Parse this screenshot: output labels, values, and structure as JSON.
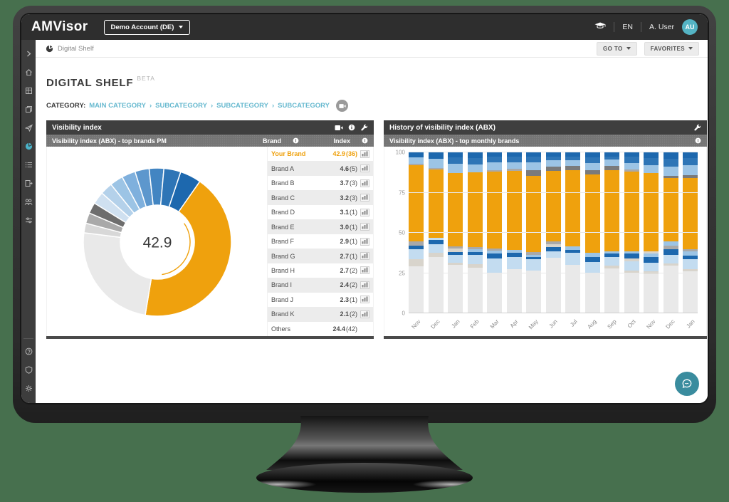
{
  "colors": {
    "background_green": "#47704e",
    "accent_orange": "#efa10d",
    "accent_teal": "#54b4c4",
    "link_teal": "#67b9cf",
    "chat_teal": "#3a8c9e"
  },
  "topbar": {
    "logo": "AMVisor",
    "account_selector": "Demo Account (DE)",
    "language": "EN",
    "user_name": "A. User",
    "user_initials": "AU",
    "icons": [
      "academy-cap-icon"
    ]
  },
  "navbar": {
    "breadcrumb": "Digital Shelf",
    "goto_label": "GO TO",
    "favorites_label": "FAVORITES"
  },
  "sidebar": {
    "top_icons": [
      "collapse-chevron",
      "home",
      "modules-grid",
      "pages-copy",
      "launch-send",
      "digital-shelf-pie",
      "list",
      "report-export",
      "users",
      "filter-sliders"
    ],
    "active_icon": "digital-shelf-pie",
    "bottom_icons": [
      "help",
      "shield",
      "settings-gear"
    ]
  },
  "page": {
    "title": "DIGITAL SHELF",
    "badge": "BETA",
    "category_label": "CATEGORY:",
    "category_separator": "›",
    "category_path": [
      "MAIN CATEGORY",
      "SUBCATEGORY",
      "SUBCATEGORY",
      "SUBCATEGORY"
    ]
  },
  "left_panel": {
    "title": "Visibility index",
    "subtitle": "Visibility index (ABX) - top brands PM",
    "columns": {
      "brand": "Brand",
      "index": "Index"
    },
    "rows": [
      {
        "brand": "Your Brand",
        "index": "42.9",
        "count": "(36)",
        "highlight": true,
        "chart_icon": true
      },
      {
        "brand": "Brand A",
        "index": "4.6",
        "count": "(5)",
        "highlight": false,
        "chart_icon": true
      },
      {
        "brand": "Brand B",
        "index": "3.7",
        "count": "(3)",
        "highlight": false,
        "chart_icon": true
      },
      {
        "brand": "Brand C",
        "index": "3.2",
        "count": "(3)",
        "highlight": false,
        "chart_icon": true
      },
      {
        "brand": "Brand D",
        "index": "3.1",
        "count": "(1)",
        "highlight": false,
        "chart_icon": true
      },
      {
        "brand": "Brand E",
        "index": "3.0",
        "count": "(1)",
        "highlight": false,
        "chart_icon": true
      },
      {
        "brand": "Brand F",
        "index": "2.9",
        "count": "(1)",
        "highlight": false,
        "chart_icon": true
      },
      {
        "brand": "Brand G",
        "index": "2.7",
        "count": "(1)",
        "highlight": false,
        "chart_icon": true
      },
      {
        "brand": "Brand H",
        "index": "2.7",
        "count": "(2)",
        "highlight": false,
        "chart_icon": true
      },
      {
        "brand": "Brand I",
        "index": "2.4",
        "count": "(2)",
        "highlight": false,
        "chart_icon": true
      },
      {
        "brand": "Brand J",
        "index": "2.3",
        "count": "(1)",
        "highlight": false,
        "chart_icon": true
      },
      {
        "brand": "Brand K",
        "index": "2.1",
        "count": "(2)",
        "highlight": false,
        "chart_icon": true
      },
      {
        "brand": "Others",
        "index": "24.4",
        "count": "(42)",
        "highlight": false,
        "chart_icon": false
      }
    ]
  },
  "right_panel": {
    "title": "History of visibility index (ABX)",
    "subtitle": "Visibility index (ABX) - top monthly brands"
  },
  "chart_data": [
    {
      "type": "pie",
      "variant": "donut",
      "title": "Visibility index (ABX) - top brands PM",
      "center_label": "42.9",
      "start_angle_deg": 35,
      "inner_marker": {
        "from_deg": 55,
        "to_deg": 172,
        "color": "#efa10d"
      },
      "segments": [
        {
          "label": "Your Brand",
          "value": 42.9,
          "color": "#efa10d"
        },
        {
          "label": "Others",
          "value": 24.4,
          "color": "#e9e9e9"
        },
        {
          "label": "Brand K",
          "value": 2.1,
          "color": "#d8d8d8"
        },
        {
          "label": "Brand J",
          "value": 2.3,
          "color": "#a9a9a9"
        },
        {
          "label": "Brand I",
          "value": 2.4,
          "color": "#6d6d6d"
        },
        {
          "label": "Brand H",
          "value": 2.7,
          "color": "#cfe0f0"
        },
        {
          "label": "Brand G",
          "value": 2.7,
          "color": "#b4d1ea"
        },
        {
          "label": "Brand F",
          "value": 2.9,
          "color": "#9cc4e5"
        },
        {
          "label": "Brand E",
          "value": 3.0,
          "color": "#7fb0dd"
        },
        {
          "label": "Brand D",
          "value": 3.1,
          "color": "#5d97cd"
        },
        {
          "label": "Brand C",
          "value": 3.2,
          "color": "#4285c2"
        },
        {
          "label": "Brand B",
          "value": 3.7,
          "color": "#2e75b6"
        },
        {
          "label": "Brand A",
          "value": 4.6,
          "color": "#1d68ae"
        }
      ]
    },
    {
      "type": "bar",
      "variant": "stacked-100",
      "title": "Visibility index (ABX) - top monthly brands",
      "categories": [
        "Nov",
        "Dec",
        "Jan",
        "Feb",
        "Mar",
        "Apr",
        "May",
        "Jun",
        "Jul",
        "Aug",
        "Sep",
        "Oct",
        "Nov",
        "Dec",
        "Jan"
      ],
      "ylim": [
        0,
        100
      ],
      "yticks": [
        0,
        25,
        50,
        75,
        100
      ],
      "grid": true,
      "palette": {
        "g1": "#e9e9e9",
        "g2": "#d8d4cc",
        "gs": "#a9a9a9",
        "gd": "#7a7a7a",
        "lb": "#c3dcf0",
        "lb2": "#9cc4e5",
        "mb": "#3d86c6",
        "mb2": "#2e75b6",
        "db": "#1d68ae",
        "or": "#efa10d"
      },
      "bars": [
        {
          "month": "Nov",
          "segments": [
            [
              "g1",
              29,
              0
            ],
            [
              "g2",
              4.5,
              2
            ],
            [
              "lb",
              6.5,
              0
            ],
            [
              "db",
              2,
              0
            ],
            [
              "gs",
              2.5,
              0
            ],
            [
              "or",
              47.5,
              0
            ],
            [
              "gs",
              1,
              0
            ],
            [
              "lb2",
              4,
              1
            ],
            [
              "db",
              3,
              0
            ]
          ]
        },
        {
          "month": "Dec",
          "segments": [
            [
              "g1",
              35,
              0
            ],
            [
              "g2",
              2.5,
              2
            ],
            [
              "lb",
              5.5,
              0
            ],
            [
              "db",
              2.5,
              0
            ],
            [
              "lb",
              1.5,
              0
            ],
            [
              "or",
              42.5,
              0
            ],
            [
              "gs",
              1,
              0
            ],
            [
              "lb2",
              5.5,
              1
            ],
            [
              "db",
              4,
              0
            ]
          ]
        },
        {
          "month": "Jan",
          "segments": [
            [
              "g1",
              30,
              0
            ],
            [
              "g2",
              1.5,
              2
            ],
            [
              "lb",
              5,
              0
            ],
            [
              "db",
              1.5,
              0
            ],
            [
              "g2",
              2.5,
              2
            ],
            [
              "gs",
              1,
              0
            ],
            [
              "or",
              45.5,
              0
            ],
            [
              "lb2",
              6,
              1
            ],
            [
              "mb2",
              4,
              1
            ],
            [
              "db",
              3,
              0
            ]
          ]
        },
        {
          "month": "Feb",
          "segments": [
            [
              "g1",
              28.5,
              0
            ],
            [
              "g2",
              2,
              2
            ],
            [
              "lb",
              6,
              0
            ],
            [
              "db",
              1.5,
              0
            ],
            [
              "lb2",
              2,
              1
            ],
            [
              "gs",
              1,
              0
            ],
            [
              "or",
              46.5,
              0
            ],
            [
              "lb2",
              5,
              1
            ],
            [
              "mb2",
              4,
              1
            ],
            [
              "db",
              3.5,
              0
            ]
          ]
        },
        {
          "month": "Mar",
          "segments": [
            [
              "g1",
              25,
              0
            ],
            [
              "lb",
              9,
              0
            ],
            [
              "db",
              3,
              0
            ],
            [
              "lb2",
              2,
              1
            ],
            [
              "gs",
              1.5,
              0
            ],
            [
              "or",
              47.5,
              0
            ],
            [
              "gs",
              1,
              0
            ],
            [
              "lb2",
              5,
              1
            ],
            [
              "mb2",
              3.5,
              1
            ],
            [
              "db",
              2.5,
              0
            ]
          ]
        },
        {
          "month": "Apr",
          "segments": [
            [
              "g1",
              27.5,
              0
            ],
            [
              "lb",
              7.5,
              0
            ],
            [
              "db",
              2.5,
              0
            ],
            [
              "lb2",
              2,
              1
            ],
            [
              "or",
              49,
              0
            ],
            [
              "gs",
              1.5,
              0
            ],
            [
              "lb2",
              4,
              1
            ],
            [
              "mb2",
              3.5,
              1
            ],
            [
              "db",
              2.5,
              0
            ]
          ]
        },
        {
          "month": "May",
          "segments": [
            [
              "g1",
              26.5,
              0
            ],
            [
              "lb",
              7,
              0
            ],
            [
              "db",
              1.5,
              0
            ],
            [
              "lb2",
              1.5,
              1
            ],
            [
              "gs",
              1.5,
              0
            ],
            [
              "or",
              47.5,
              0
            ],
            [
              "gd",
              3.5,
              0
            ],
            [
              "lb2",
              5,
              1
            ],
            [
              "mb2",
              3.5,
              1
            ],
            [
              "db",
              2.5,
              0
            ]
          ]
        },
        {
          "month": "Jun",
          "segments": [
            [
              "g1",
              34.5,
              0
            ],
            [
              "lb",
              4,
              0
            ],
            [
              "db",
              2.5,
              0
            ],
            [
              "g2",
              2,
              2
            ],
            [
              "gs",
              1.5,
              0
            ],
            [
              "or",
              44,
              0
            ],
            [
              "gd",
              2.5,
              0
            ],
            [
              "lb2",
              4,
              1
            ],
            [
              "mb2",
              2.5,
              1
            ],
            [
              "db",
              2.5,
              0
            ]
          ]
        },
        {
          "month": "Jul",
          "segments": [
            [
              "g1",
              30,
              0
            ],
            [
              "lb",
              7.5,
              0
            ],
            [
              "db",
              2,
              0
            ],
            [
              "lb2",
              2,
              1
            ],
            [
              "or",
              47.5,
              0
            ],
            [
              "gd",
              2.5,
              0
            ],
            [
              "lb2",
              3.5,
              1
            ],
            [
              "mb2",
              2.5,
              1
            ],
            [
              "db",
              2.5,
              0
            ]
          ]
        },
        {
          "month": "Aug",
          "segments": [
            [
              "g1",
              25,
              0
            ],
            [
              "lb",
              7,
              0
            ],
            [
              "db",
              3,
              0
            ],
            [
              "lb2",
              2.5,
              1
            ],
            [
              "or",
              49,
              0
            ],
            [
              "gd",
              2.5,
              0
            ],
            [
              "lb2",
              4.5,
              1
            ],
            [
              "mb2",
              3.5,
              1
            ],
            [
              "db",
              3,
              0
            ]
          ]
        },
        {
          "month": "Sep",
          "segments": [
            [
              "g1",
              28,
              0
            ],
            [
              "g2",
              1.5,
              2
            ],
            [
              "lb",
              5.5,
              0
            ],
            [
              "db",
              2,
              0
            ],
            [
              "lb2",
              1.5,
              1
            ],
            [
              "or",
              50.5,
              0
            ],
            [
              "gd",
              2.5,
              0
            ],
            [
              "lb2",
              4,
              1
            ],
            [
              "mb2",
              2,
              1
            ],
            [
              "db",
              2.5,
              0
            ]
          ]
        },
        {
          "month": "Oct",
          "segments": [
            [
              "g1",
              25,
              0
            ],
            [
              "g2",
              1.5,
              2
            ],
            [
              "lb",
              6,
              0
            ],
            [
              "g2",
              1.5,
              2
            ],
            [
              "db",
              3,
              0
            ],
            [
              "lb2",
              1.5,
              1
            ],
            [
              "or",
              49.5,
              0
            ],
            [
              "gs",
              1.5,
              0
            ],
            [
              "lb2",
              4,
              1
            ],
            [
              "mb2",
              4,
              1
            ],
            [
              "db",
              2.5,
              0
            ]
          ]
        },
        {
          "month": "Nov",
          "segments": [
            [
              "g1",
              24.5,
              0
            ],
            [
              "g2",
              1.5,
              2
            ],
            [
              "lb",
              5.5,
              0
            ],
            [
              "db",
              3.5,
              0
            ],
            [
              "lb2",
              2,
              1
            ],
            [
              "g2",
              1.5,
              2
            ],
            [
              "or",
              48.5,
              0
            ],
            [
              "lb2",
              5,
              1
            ],
            [
              "mb2",
              4.5,
              1
            ],
            [
              "db",
              3.5,
              0
            ]
          ]
        },
        {
          "month": "Dec",
          "segments": [
            [
              "g1",
              29.5,
              0
            ],
            [
              "g2",
              1.5,
              2
            ],
            [
              "lb",
              5.5,
              0
            ],
            [
              "db",
              3.5,
              0
            ],
            [
              "gs",
              2,
              0
            ],
            [
              "lb2",
              2.5,
              1
            ],
            [
              "or",
              39.5,
              0
            ],
            [
              "gd",
              1.5,
              0
            ],
            [
              "lb2",
              5.5,
              1
            ],
            [
              "mb2",
              5,
              1
            ],
            [
              "db",
              4,
              0
            ]
          ]
        },
        {
          "month": "Jan",
          "segments": [
            [
              "g1",
              26,
              0
            ],
            [
              "g2",
              1.5,
              2
            ],
            [
              "lb",
              6,
              0
            ],
            [
              "db",
              2.5,
              0
            ],
            [
              "lb2",
              2.5,
              1
            ],
            [
              "gs",
              1.5,
              0
            ],
            [
              "or",
              44,
              0
            ],
            [
              "gd",
              2,
              0
            ],
            [
              "lb2",
              6,
              1
            ],
            [
              "mb2",
              4.5,
              1
            ],
            [
              "db",
              3.5,
              0
            ]
          ]
        }
      ]
    }
  ]
}
